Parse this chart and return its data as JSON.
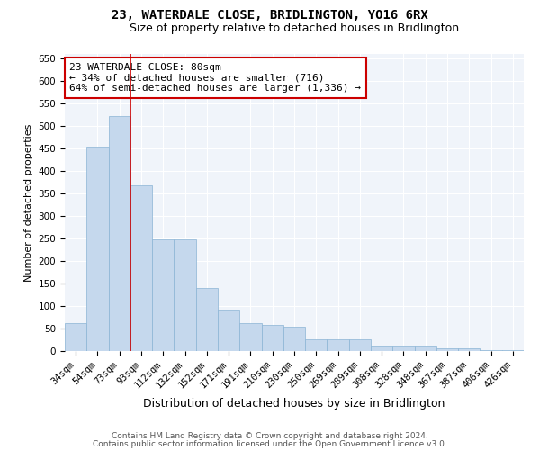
{
  "title": "23, WATERDALE CLOSE, BRIDLINGTON, YO16 6RX",
  "subtitle": "Size of property relative to detached houses in Bridlington",
  "xlabel": "Distribution of detached houses by size in Bridlington",
  "ylabel": "Number of detached properties",
  "categories": [
    "34sqm",
    "54sqm",
    "73sqm",
    "93sqm",
    "112sqm",
    "132sqm",
    "152sqm",
    "171sqm",
    "191sqm",
    "210sqm",
    "230sqm",
    "250sqm",
    "269sqm",
    "289sqm",
    "308sqm",
    "328sqm",
    "348sqm",
    "367sqm",
    "387sqm",
    "406sqm",
    "426sqm"
  ],
  "values": [
    62,
    455,
    522,
    368,
    248,
    248,
    140,
    92,
    62,
    58,
    54,
    27,
    27,
    27,
    12,
    12,
    12,
    7,
    7,
    3,
    3
  ],
  "bar_color": "#c5d8ed",
  "bar_edge_color": "#8ab4d4",
  "vline_x": 2.5,
  "vline_color": "#cc0000",
  "annotation_text": "23 WATERDALE CLOSE: 80sqm\n← 34% of detached houses are smaller (716)\n64% of semi-detached houses are larger (1,336) →",
  "annotation_box_color": "#ffffff",
  "annotation_box_edge_color": "#cc0000",
  "ylim": [
    0,
    660
  ],
  "yticks": [
    0,
    50,
    100,
    150,
    200,
    250,
    300,
    350,
    400,
    450,
    500,
    550,
    600,
    650
  ],
  "footer1": "Contains HM Land Registry data © Crown copyright and database right 2024.",
  "footer2": "Contains public sector information licensed under the Open Government Licence v3.0.",
  "background_color": "#ffffff",
  "plot_background_color": "#f0f4fa",
  "grid_color": "#ffffff",
  "title_fontsize": 10,
  "subtitle_fontsize": 9,
  "ylabel_fontsize": 8,
  "xlabel_fontsize": 9,
  "tick_fontsize": 7.5,
  "annotation_fontsize": 8,
  "footer_fontsize": 6.5
}
